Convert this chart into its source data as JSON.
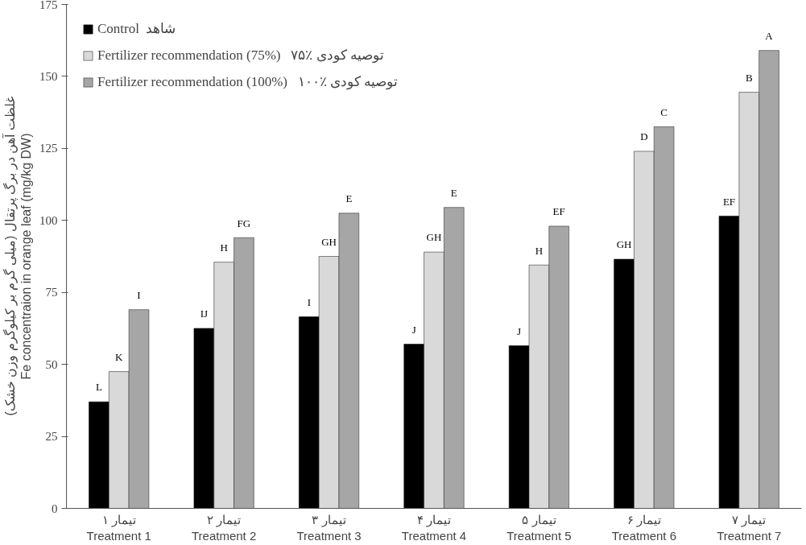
{
  "chart_data": {
    "type": "bar",
    "ylabel": "غلظت آهن در برگ پرتقال (میلی گرم بر کیلوگرم وزن خشک)\nFe concentraion in orange leaf (mg/kg DW)",
    "categories": [
      "تیمار ۱\nTreatment 1",
      "تیمار ۲\nTreatment 2",
      "تیمار ۳\nTreatment 3",
      "تیمار ۴\nTreatment 4",
      "تیمار ۵\nTreatment 5",
      "تیمار ۶\nTreatment 6",
      "تیمار ۷\nTreatment 7"
    ],
    "series": [
      {
        "name": "Control  شاهد",
        "color": "#000000",
        "values": [
          37,
          62.5,
          66.5,
          57,
          56.5,
          86.5,
          101.5
        ],
        "value_labels": [
          "L",
          "IJ",
          "I",
          "J",
          "J",
          "GH",
          "EF"
        ]
      },
      {
        "name": "Fertilizer recommendation (75%)   ۷۵٪ توصیه کودی",
        "color": "#d9d9d9",
        "values": [
          47.5,
          85.5,
          87.5,
          89,
          84.5,
          124,
          144.5
        ],
        "value_labels": [
          "K",
          "H",
          "GH",
          "GH",
          "H",
          "D",
          "B"
        ]
      },
      {
        "name": "Fertilizer recommendation (100%)   ۱۰۰٪ توصیه کودی",
        "color": "#a6a6a6",
        "values": [
          69,
          94,
          102.5,
          104.5,
          98,
          132.5,
          159
        ],
        "value_labels": [
          "I",
          "FG",
          "E",
          "E",
          "EF",
          "C",
          "A"
        ]
      }
    ],
    "ylim": [
      0,
      175
    ],
    "yticks": [
      0,
      25,
      50,
      75,
      100,
      125,
      150,
      175
    ],
    "grid": false,
    "legend": "top left"
  }
}
